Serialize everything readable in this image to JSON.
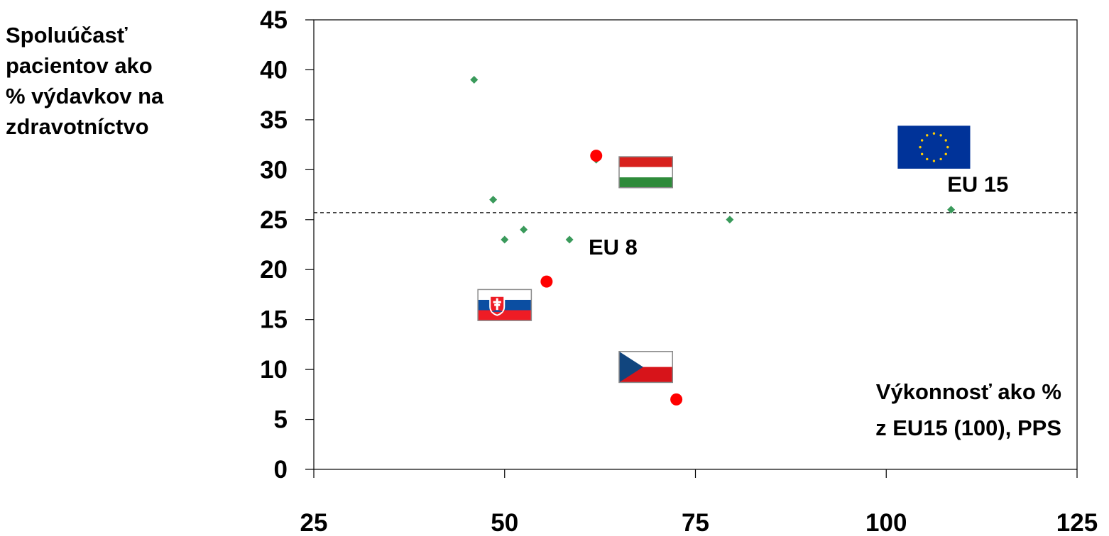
{
  "chart_data": {
    "type": "scatter",
    "xlabel": [
      "Výkonnosť ako %",
      "z EU15 (100), PPS"
    ],
    "ylabel": [
      "Spoluúčasť",
      "pacientov ako",
      "% výdavkov na",
      "zdravotníctvo"
    ],
    "xlim": [
      25,
      125
    ],
    "ylim": [
      0,
      45
    ],
    "x_ticks": [
      "25",
      "50",
      "75",
      "100",
      "125"
    ],
    "y_ticks": [
      "0",
      "5",
      "10",
      "15",
      "20",
      "25",
      "30",
      "35",
      "40",
      "45"
    ],
    "grid": false,
    "reference_line": {
      "y": 25.7,
      "style": "dashed"
    },
    "series": [
      {
        "marker": "diamond",
        "color": "#3a9a5b",
        "points": [
          {
            "x": 46,
            "y": 39
          },
          {
            "x": 48.5,
            "y": 27
          },
          {
            "x": 50,
            "y": 23
          },
          {
            "x": 52.5,
            "y": 24
          },
          {
            "x": 58.5,
            "y": 23
          },
          {
            "x": 62,
            "y": 31
          },
          {
            "x": 79.5,
            "y": 25
          },
          {
            "x": 108.5,
            "y": 26
          }
        ]
      },
      {
        "marker": "circle",
        "color": "#ff0000",
        "points": [
          {
            "x": 62,
            "y": 31.4
          },
          {
            "x": 55.5,
            "y": 18.8
          },
          {
            "x": 72.5,
            "y": 7
          }
        ]
      }
    ],
    "annotations": [
      {
        "text": "EU 8",
        "x": 61,
        "y": 21.5
      },
      {
        "text": "EU 15",
        "x": 108,
        "y": 27.8
      }
    ],
    "flags": [
      {
        "name": "hungary-flag",
        "x": 65,
        "y": 31.3,
        "x2": 72,
        "y2": 28.2
      },
      {
        "name": "slovakia-flag",
        "x": 46.5,
        "y": 18,
        "x2": 53.5,
        "y2": 14.9
      },
      {
        "name": "czech-flag",
        "x": 65,
        "y": 11.8,
        "x2": 72,
        "y2": 8.7
      },
      {
        "name": "eu-flag",
        "x": 101.5,
        "y": 34.4,
        "x2": 111,
        "y2": 30.1
      }
    ]
  }
}
